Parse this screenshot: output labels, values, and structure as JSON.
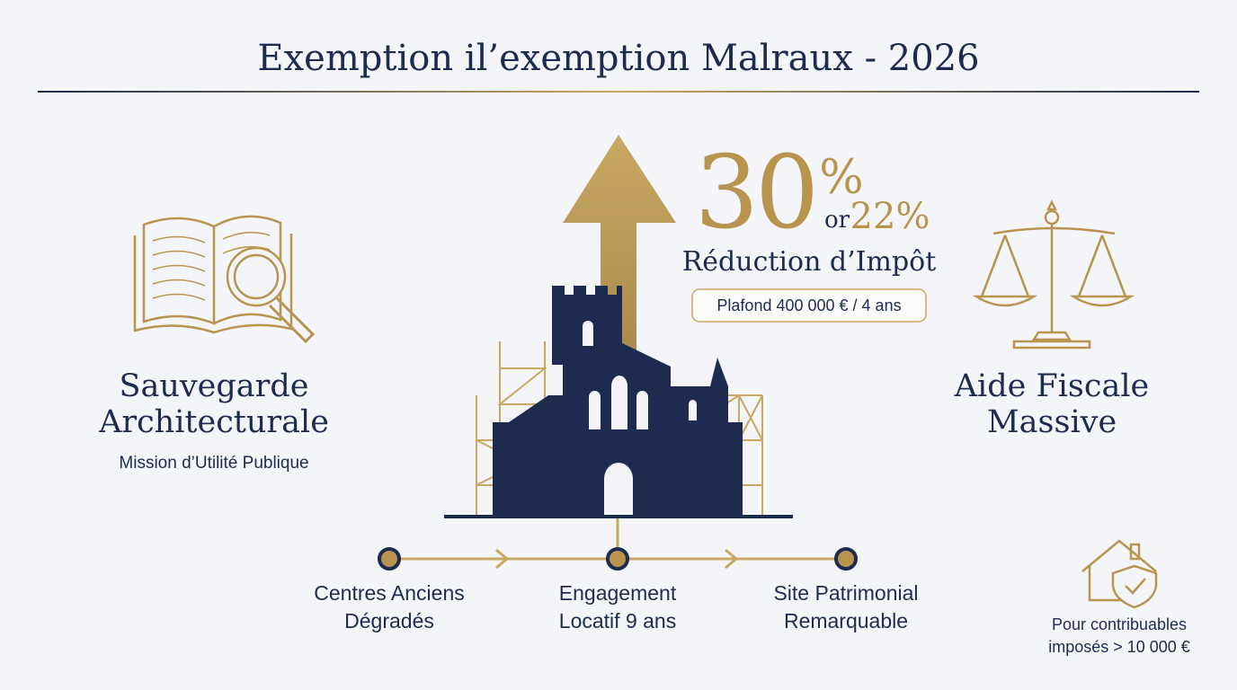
{
  "header": {
    "title": "Exemption il’exemption Malraux - 2026"
  },
  "highlight": {
    "rate": "30",
    "rate_unit": "%",
    "alt_word": "or",
    "alt_rate": "22%",
    "label": "Réduction d’Impôt",
    "ceiling": "Plafond 400 000 € / 4 ans"
  },
  "left": {
    "lines": [
      "Sauvegarde",
      "Architecturale"
    ],
    "subtitle": "Mission d’Utilité Publique"
  },
  "right": {
    "lines": [
      "Aide Fiscale",
      "Massive"
    ]
  },
  "timeline": [
    {
      "lines": [
        "Centres Anciens",
        "Dégradés"
      ]
    },
    {
      "lines": [
        "Engagement",
        "Locatif 9 ans"
      ]
    },
    {
      "lines": [
        "Site Patrimonial",
        "Remarquable"
      ]
    }
  ],
  "note": {
    "lines": [
      "Pour contribuables",
      "imposés > 10 000 €"
    ]
  }
}
